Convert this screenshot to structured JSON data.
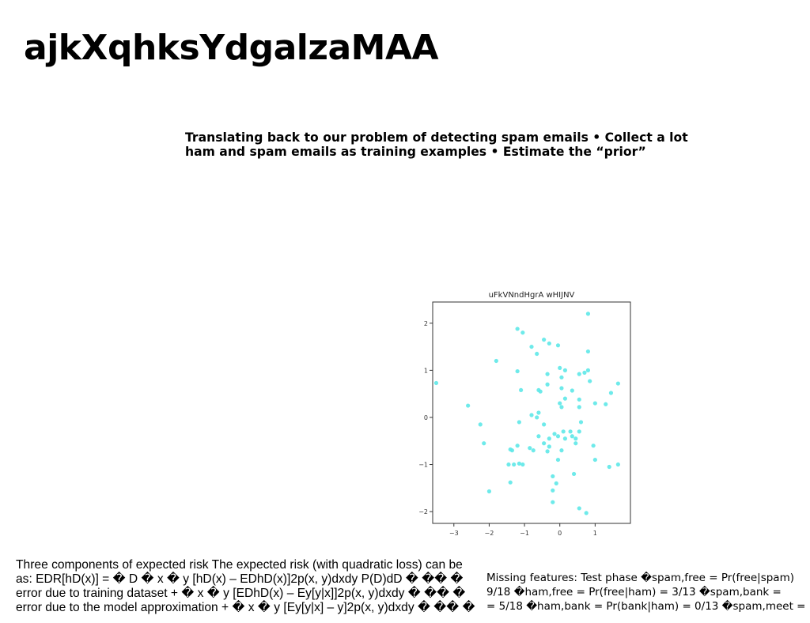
{
  "slide": {
    "title": "ajkXqhksYdgalzaMAA",
    "intro_text": "Translating back to our problem of detecting spam emails • Collect a lot ham and spam emails as training examples • Estimate the “prior”",
    "risk_text": "Three components of expected risk The expected risk (with quadratic loss) can be\nas: EDR[hD(x)] = � D � x � y [hD(x) – EDhD(x)]2p(x, y)dxdy P(D)dD � �� �\nerror due to training dataset + � x � y [EDhD(x) – Ey[y|x]]2p(x, y)dxdy � �� �\nerror due to the model approximation + � x � y [Ey[y|x] – y]2p(x, y)dxdy � �� �",
    "features_text": "Missing features: Test phase �spam,free = Pr(free|spam)\n9/18 �ham,free = Pr(free|ham) = 3/13 �spam,bank =\n= 5/18 �ham,bank = Pr(bank|ham) = 0/13 �spam,meet ="
  },
  "chart_data": {
    "type": "scatter",
    "title": "uFkVNndHgrA wHIJNV",
    "xlim": [
      -3.6,
      2.0
    ],
    "ylim": [
      -2.25,
      2.45
    ],
    "xticks": [
      -3,
      -2,
      -1,
      0,
      1
    ],
    "yticks": [
      2,
      1,
      0,
      -1,
      -2
    ],
    "grid": false,
    "color": "#5ee8e8",
    "points": [
      [
        0.8,
        2.2
      ],
      [
        -1.2,
        1.88
      ],
      [
        -1.05,
        1.8
      ],
      [
        -0.45,
        1.65
      ],
      [
        -0.3,
        1.57
      ],
      [
        -0.05,
        1.53
      ],
      [
        -0.8,
        1.5
      ],
      [
        -0.65,
        1.35
      ],
      [
        0.8,
        1.4
      ],
      [
        -1.8,
        1.2
      ],
      [
        -1.2,
        0.98
      ],
      [
        0.0,
        1.05
      ],
      [
        0.55,
        0.92
      ],
      [
        0.7,
        0.95
      ],
      [
        0.8,
        1.0
      ],
      [
        0.15,
        1.0
      ],
      [
        -0.35,
        0.92
      ],
      [
        0.05,
        0.85
      ],
      [
        -3.5,
        0.73
      ],
      [
        0.85,
        0.77
      ],
      [
        1.65,
        0.72
      ],
      [
        -1.1,
        0.58
      ],
      [
        -0.6,
        0.58
      ],
      [
        -0.35,
        0.7
      ],
      [
        -0.55,
        0.55
      ],
      [
        0.35,
        0.57
      ],
      [
        0.05,
        0.62
      ],
      [
        1.45,
        0.52
      ],
      [
        0.55,
        0.38
      ],
      [
        0.15,
        0.4
      ],
      [
        1.0,
        0.3
      ],
      [
        1.3,
        0.28
      ],
      [
        -2.6,
        0.25
      ],
      [
        0.05,
        0.22
      ],
      [
        0.55,
        0.22
      ],
      [
        0.0,
        0.3
      ],
      [
        -0.8,
        0.05
      ],
      [
        -0.6,
        0.1
      ],
      [
        -0.65,
        0.0
      ],
      [
        -0.45,
        -0.15
      ],
      [
        -2.25,
        -0.15
      ],
      [
        -1.15,
        -0.1
      ],
      [
        0.3,
        -0.3
      ],
      [
        0.6,
        -0.1
      ],
      [
        0.35,
        -0.4
      ],
      [
        0.15,
        -0.45
      ],
      [
        -0.15,
        -0.35
      ],
      [
        -0.05,
        -0.4
      ],
      [
        0.45,
        -0.45
      ],
      [
        -0.45,
        -0.55
      ],
      [
        -0.3,
        -0.45
      ],
      [
        0.45,
        -0.55
      ],
      [
        -0.6,
        -0.4
      ],
      [
        -1.2,
        -0.6
      ],
      [
        -0.85,
        -0.65
      ],
      [
        -0.75,
        -0.7
      ],
      [
        -1.35,
        -0.7
      ],
      [
        0.05,
        -0.7
      ],
      [
        -0.35,
        -0.72
      ],
      [
        -0.3,
        -0.62
      ],
      [
        -1.4,
        -0.68
      ],
      [
        -2.15,
        -0.55
      ],
      [
        0.95,
        -0.6
      ],
      [
        0.1,
        -0.3
      ],
      [
        0.55,
        -0.3
      ],
      [
        -1.45,
        -1.0
      ],
      [
        -1.3,
        -1.0
      ],
      [
        -1.15,
        -0.98
      ],
      [
        -1.05,
        -1.0
      ],
      [
        -0.05,
        -0.9
      ],
      [
        1.0,
        -0.9
      ],
      [
        1.4,
        -1.05
      ],
      [
        1.65,
        -1.0
      ],
      [
        0.4,
        -1.2
      ],
      [
        -0.2,
        -1.25
      ],
      [
        -0.1,
        -1.4
      ],
      [
        -1.4,
        -1.38
      ],
      [
        -2.0,
        -1.57
      ],
      [
        -0.2,
        -1.55
      ],
      [
        -0.2,
        -1.8
      ],
      [
        0.55,
        -1.93
      ],
      [
        0.75,
        -2.03
      ]
    ]
  }
}
